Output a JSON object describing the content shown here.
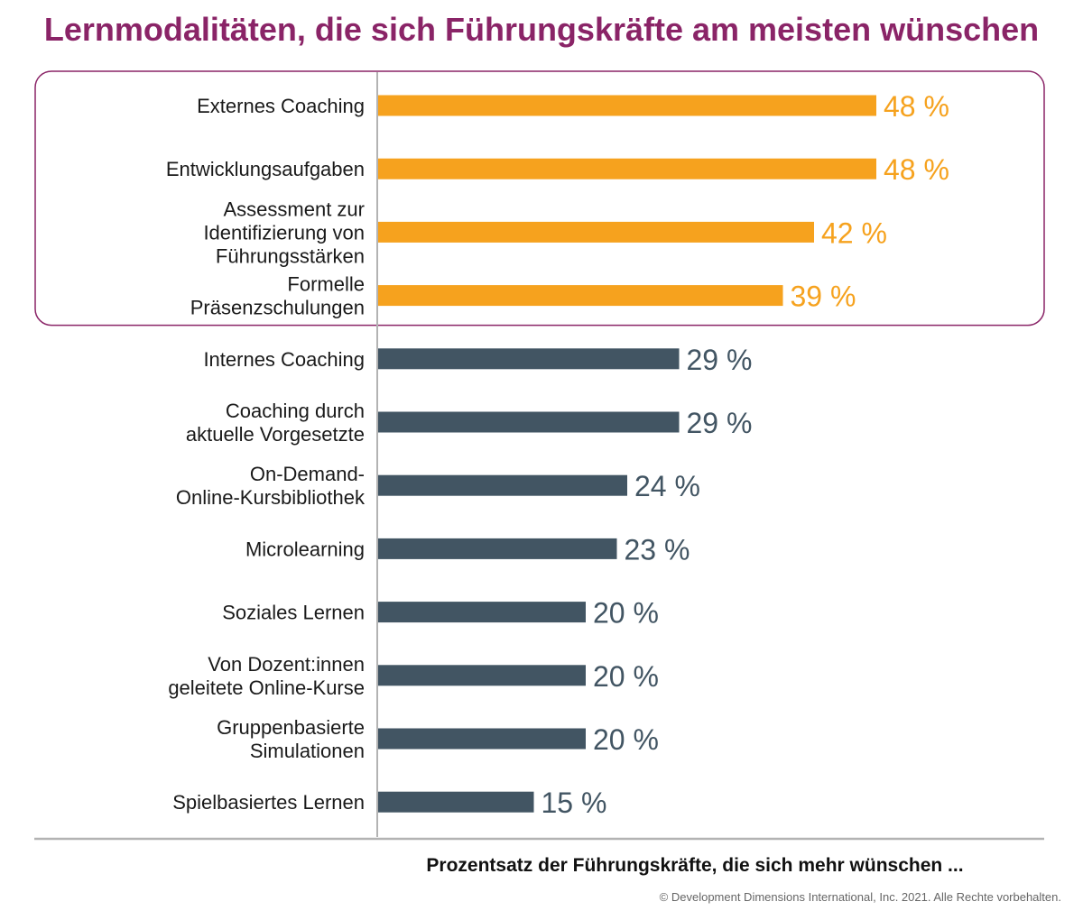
{
  "chart_data": {
    "type": "bar",
    "orientation": "horizontal",
    "title": "Lernmodalitäten, die sich Führungskräfte am meisten wünschen",
    "xlabel": "Prozentsatz der Führungskräfte, die sich mehr wünschen ...",
    "ylabel": "",
    "xlim": [
      0,
      50
    ],
    "categories": [
      [
        "Externes Coaching"
      ],
      [
        "Entwicklungsaufgaben"
      ],
      [
        "Assessment zur",
        "Identifizierung von",
        "Führungsstärken"
      ],
      [
        "Formelle",
        "Präsenzschulungen"
      ],
      [
        "Internes Coaching"
      ],
      [
        "Coaching durch",
        "aktuelle Vorgesetzte"
      ],
      [
        "On-Demand-",
        "Online-Kursbibliothek"
      ],
      [
        "Microlearning"
      ],
      [
        "Soziales Lernen"
      ],
      [
        "Von Dozent:innen",
        "geleitete Online-Kurse"
      ],
      [
        "Gruppenbasierte",
        "Simulationen"
      ],
      [
        "Spielbasiertes Lernen"
      ]
    ],
    "values": [
      48,
      48,
      42,
      39,
      29,
      29,
      24,
      23,
      20,
      20,
      20,
      15
    ],
    "value_labels": [
      "48 %",
      "48 %",
      "42 %",
      "39 %",
      "29 %",
      "29 %",
      "24 %",
      "23 %",
      "20 %",
      "20 %",
      "20 %",
      "15 %"
    ],
    "highlight_count": 4,
    "highlight_frame": true,
    "grid": false,
    "colors": {
      "highlight": "#f6a21e",
      "default": "#425563",
      "title": "#8a2467",
      "frame": "#8a2467",
      "axis": "#b3b3b3"
    }
  },
  "footer": {
    "copyright": "© Development Dimensions International, Inc. 2021. Alle Rechte vorbehalten."
  }
}
